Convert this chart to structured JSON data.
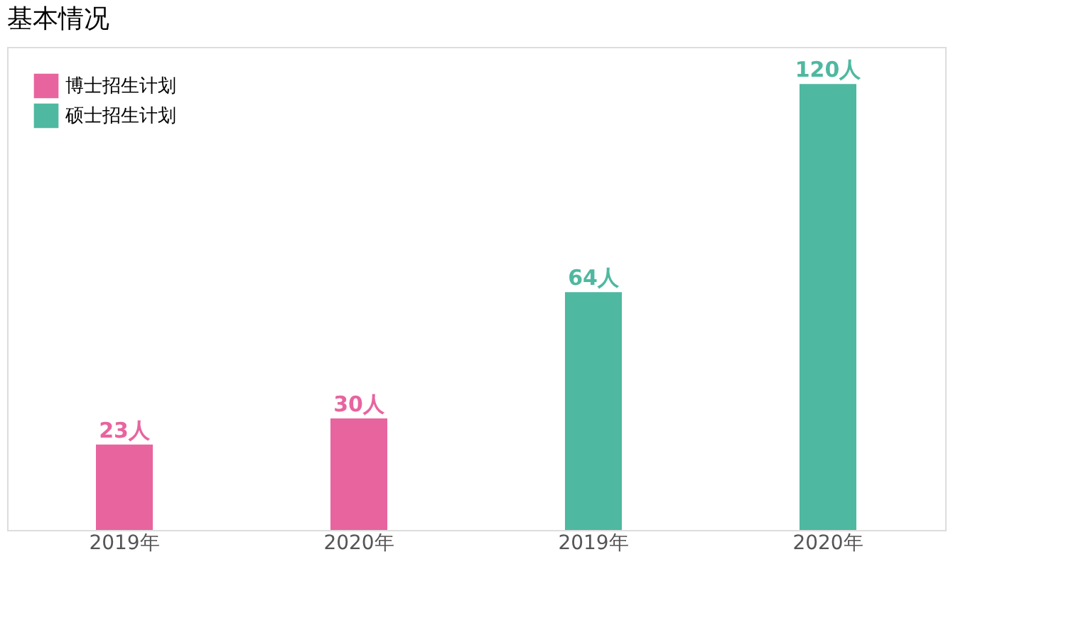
{
  "chart_data": {
    "type": "bar",
    "title": "基本情况",
    "categories": [
      "2019年",
      "2020年",
      "2019年",
      "2020年"
    ],
    "series": [
      {
        "name": "博士招生计划",
        "color": "#e8649f",
        "values": [
          23,
          30,
          null,
          null
        ],
        "value_labels": [
          "23人",
          "30人",
          null,
          null
        ]
      },
      {
        "name": "硕士招生计划",
        "color": "#4fb8a0",
        "values": [
          null,
          null,
          64,
          120
        ],
        "value_labels": [
          null,
          null,
          "64人",
          "120人"
        ]
      }
    ],
    "ylim": [
      0,
      130
    ],
    "tick_labels": "x",
    "legend": "top left",
    "grid": false
  }
}
